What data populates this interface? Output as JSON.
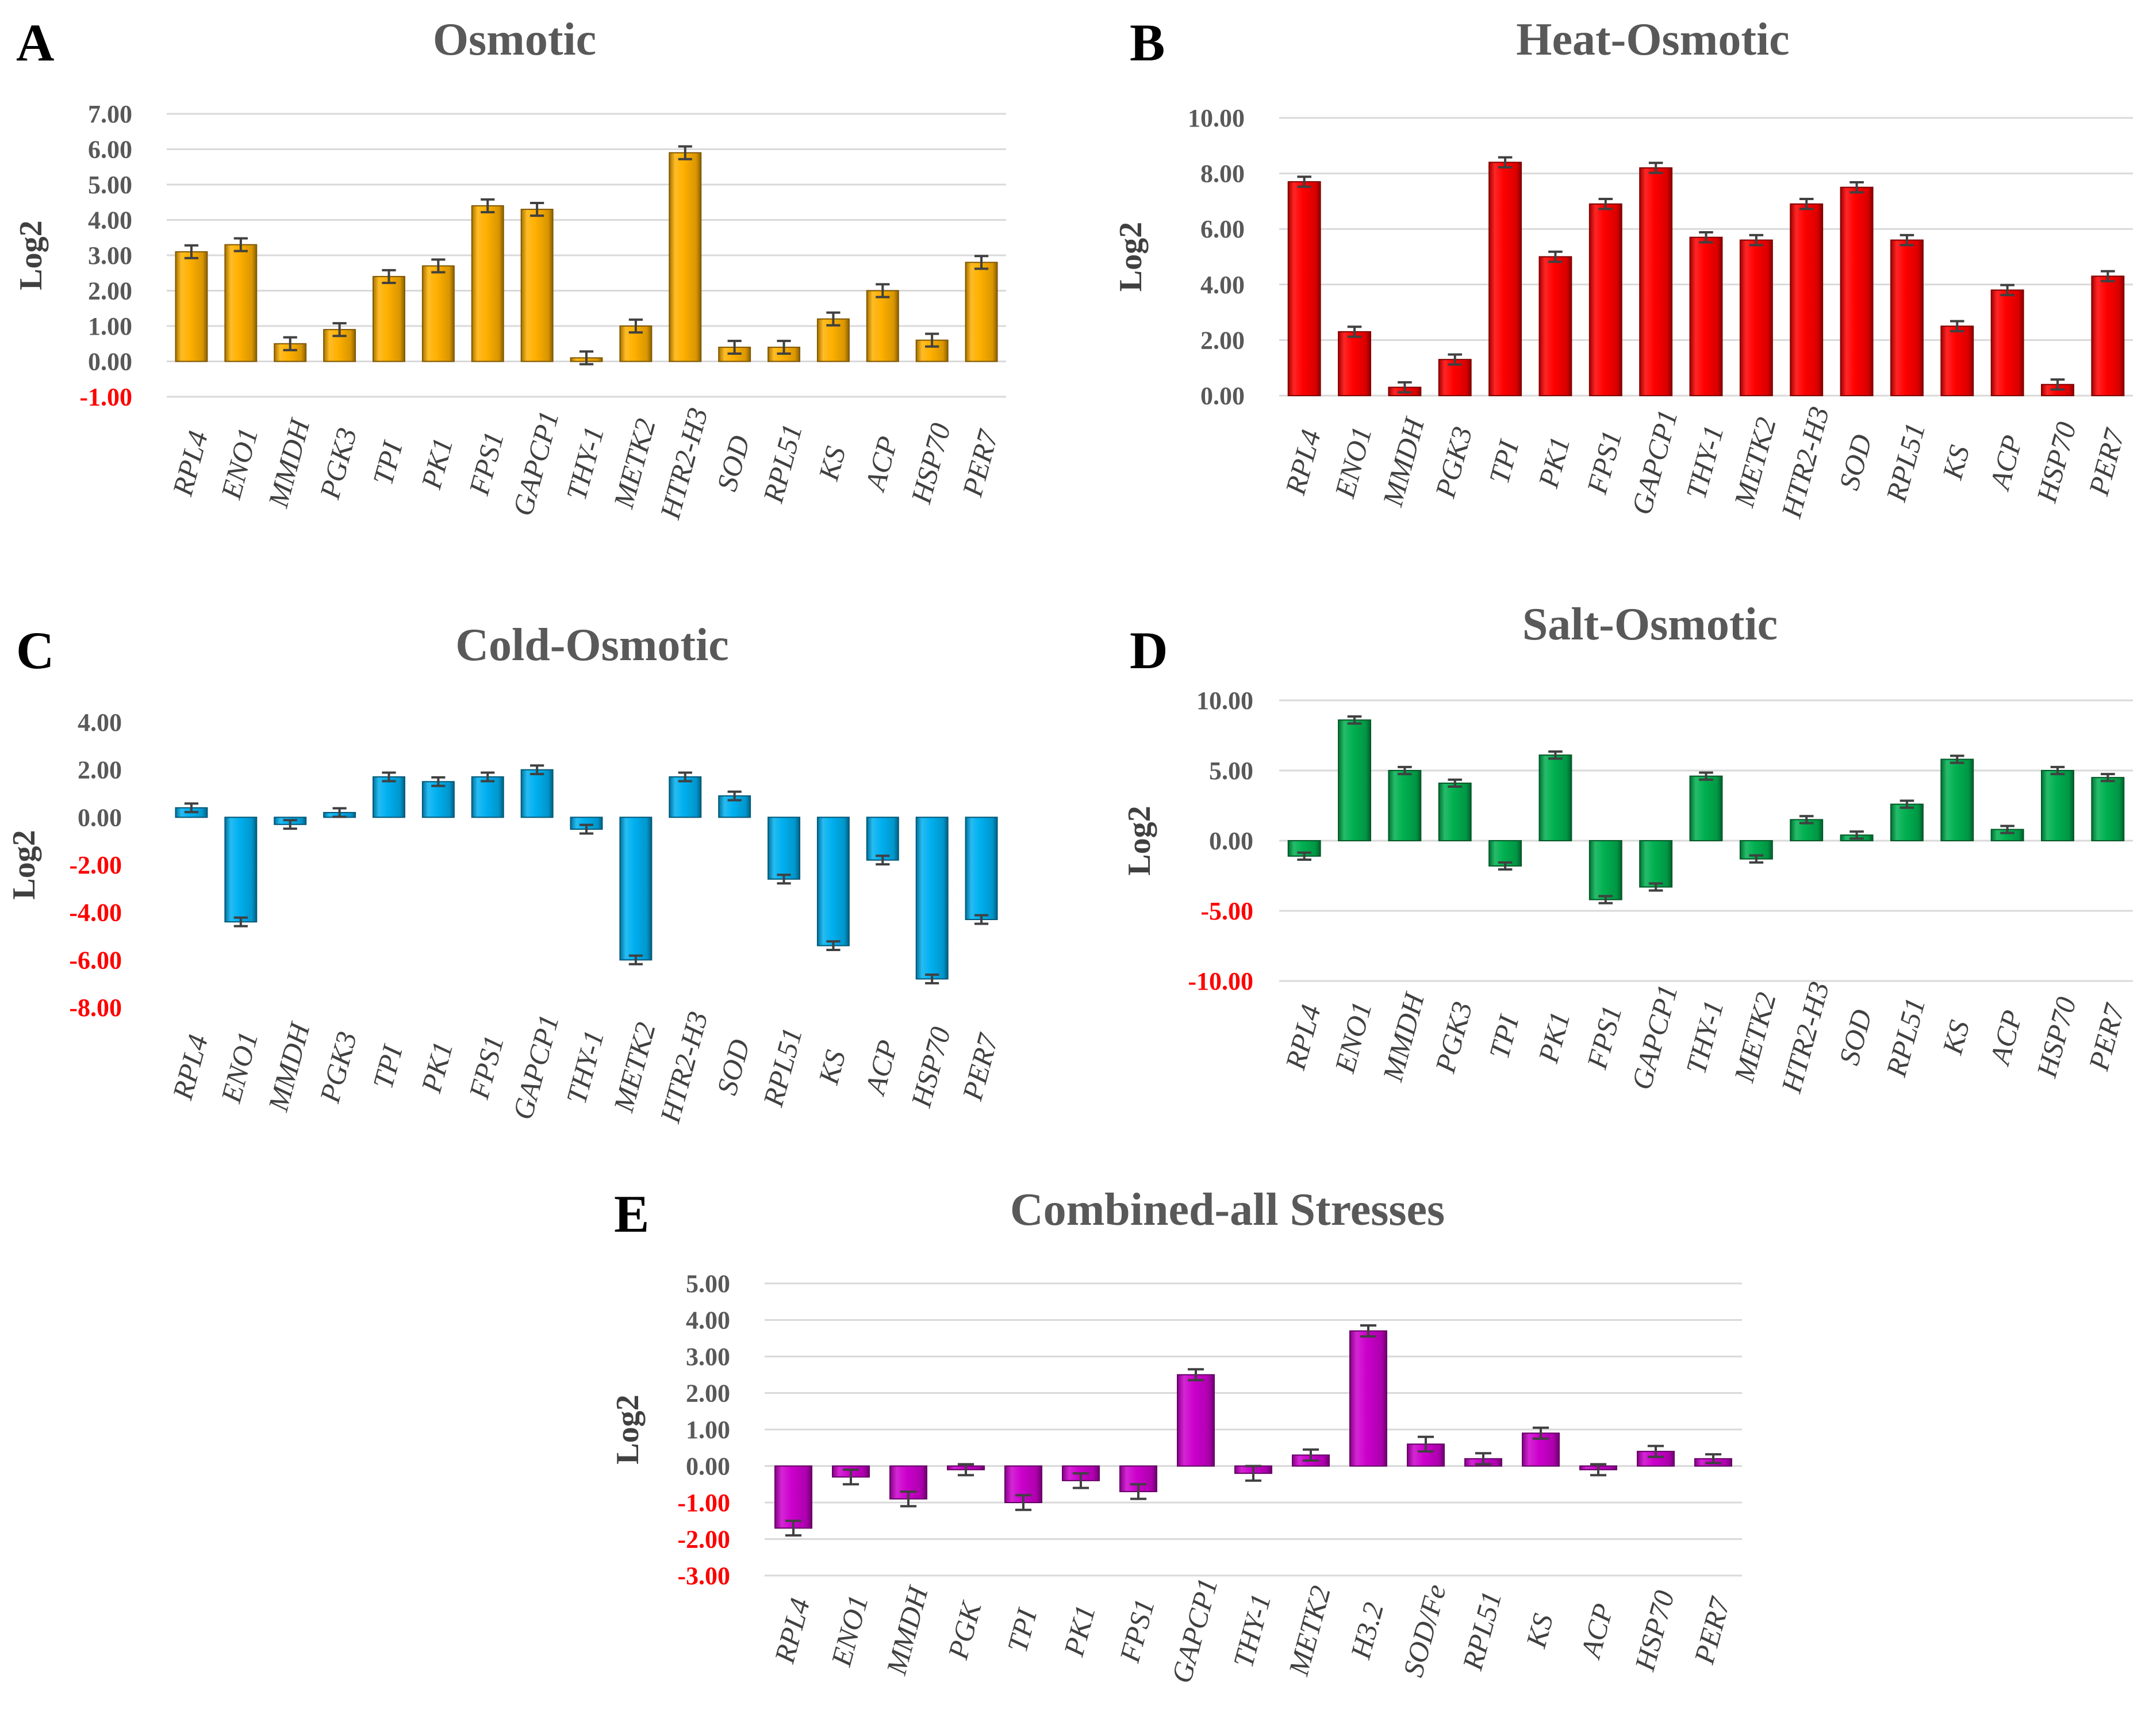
{
  "figure": {
    "neg_tick_color": "#ff0000",
    "pos_tick_color": "#595959",
    "axis_label_color": "#404040"
  },
  "chart_data": [
    {
      "panel": "A",
      "type": "bar",
      "title": "Osmotic",
      "xlabel": "",
      "ylabel": "Log2",
      "ylim": [
        -1,
        7
      ],
      "yticks": [
        -1,
        0,
        1,
        2,
        3,
        4,
        5,
        6,
        7
      ],
      "ytick_labels": [
        "-1.00",
        "0.00",
        "1.00",
        "2.00",
        "3.00",
        "4.00",
        "5.00",
        "6.00",
        "7.00"
      ],
      "grid": true,
      "color": "#ffb000",
      "categories": [
        "RPL4",
        "ENO1",
        "MMDH",
        "PGK3",
        "TPI",
        "PK1",
        "FPS1",
        "GAPCP1",
        "THY-1",
        "METK2",
        "HTR2-H3",
        "SOD",
        "RPL51",
        "KS",
        "ACP",
        "HSP70",
        "PER7"
      ],
      "values": [
        3.1,
        3.3,
        0.5,
        0.9,
        2.4,
        2.7,
        4.4,
        4.3,
        0.1,
        1.0,
        5.9,
        0.4,
        0.4,
        1.2,
        2.0,
        0.6,
        2.8
      ],
      "errors": [
        0.18,
        0.18,
        0.18,
        0.18,
        0.18,
        0.18,
        0.18,
        0.18,
        0.18,
        0.18,
        0.18,
        0.18,
        0.18,
        0.18,
        0.18,
        0.18,
        0.18
      ]
    },
    {
      "panel": "B",
      "type": "bar",
      "title": "Heat-Osmotic",
      "xlabel": "",
      "ylabel": "Log2",
      "ylim": [
        0,
        10
      ],
      "yticks": [
        0,
        2,
        4,
        6,
        8,
        10
      ],
      "ytick_labels": [
        "0.00",
        "2.00",
        "4.00",
        "6.00",
        "8.00",
        "10.00"
      ],
      "grid": true,
      "color": "#ff0000",
      "categories": [
        "RPL4",
        "ENO1",
        "MMDH",
        "PGK3",
        "TPI",
        "PK1",
        "FPS1",
        "GAPCP1",
        "THY-1",
        "METK2",
        "HTR2-H3",
        "SOD",
        "RPL51",
        "KS",
        "ACP",
        "HSP70",
        "PER7"
      ],
      "values": [
        7.7,
        2.3,
        0.3,
        1.3,
        8.4,
        5.0,
        6.9,
        8.2,
        5.7,
        5.6,
        6.9,
        7.5,
        5.6,
        2.5,
        3.8,
        0.4,
        4.3
      ],
      "errors": [
        0.18,
        0.18,
        0.18,
        0.18,
        0.18,
        0.18,
        0.18,
        0.18,
        0.18,
        0.18,
        0.18,
        0.18,
        0.18,
        0.18,
        0.18,
        0.18,
        0.18
      ]
    },
    {
      "panel": "C",
      "type": "bar",
      "title": "Cold-Osmotic",
      "xlabel": "",
      "ylabel": "Log2",
      "ylim": [
        -8,
        4
      ],
      "yticks": [
        -8,
        -6,
        -4,
        -2,
        0,
        2,
        4
      ],
      "ytick_labels": [
        "-8.00",
        "-6.00",
        "-4.00",
        "-2.00",
        "0.00",
        "2.00",
        "4.00"
      ],
      "grid": false,
      "color": "#00b0f0",
      "categories": [
        "RPL4",
        "ENO1",
        "MMDH",
        "PGK3",
        "TPI",
        "PK1",
        "FPS1",
        "GAPCP1",
        "THY-1",
        "METK2",
        "HTR2-H3",
        "SOD",
        "RPL51",
        "KS",
        "ACP",
        "HSP70",
        "PER7"
      ],
      "values": [
        0.4,
        -4.4,
        -0.3,
        0.2,
        1.7,
        1.5,
        1.7,
        2.0,
        -0.5,
        -6.0,
        1.7,
        0.9,
        -2.6,
        -5.4,
        -1.8,
        -6.8,
        -4.3
      ],
      "errors": [
        0.18,
        0.18,
        0.18,
        0.18,
        0.18,
        0.18,
        0.18,
        0.18,
        0.18,
        0.18,
        0.18,
        0.18,
        0.18,
        0.18,
        0.18,
        0.18,
        0.18
      ]
    },
    {
      "panel": "D",
      "type": "bar",
      "title": "Salt-Osmotic",
      "xlabel": "",
      "ylabel": "Log2",
      "ylim": [
        -10,
        10
      ],
      "yticks": [
        -10,
        -5,
        0,
        5,
        10
      ],
      "ytick_labels": [
        "-10.00",
        "-5.00",
        "0.00",
        "5.00",
        "10.00"
      ],
      "grid": true,
      "color": "#00b050",
      "categories": [
        "RPL4",
        "ENO1",
        "MMDH",
        "PGK3",
        "TPI",
        "PK1",
        "FPS1",
        "GAPCP1",
        "THY-1",
        "METK2",
        "HTR2-H3",
        "SOD",
        "RPL51",
        "KS",
        "ACP",
        "HSP70",
        "PER7"
      ],
      "values": [
        -1.1,
        8.6,
        5.0,
        4.1,
        -1.8,
        6.1,
        -4.2,
        -3.3,
        4.6,
        -1.3,
        1.5,
        0.4,
        2.6,
        5.8,
        0.8,
        5.0,
        4.5
      ],
      "errors": [
        0.25,
        0.25,
        0.25,
        0.25,
        0.25,
        0.25,
        0.25,
        0.25,
        0.25,
        0.25,
        0.25,
        0.25,
        0.25,
        0.25,
        0.25,
        0.25,
        0.25
      ]
    },
    {
      "panel": "E",
      "type": "bar",
      "title": "Combined-all Stresses",
      "xlabel": "",
      "ylabel": "Log2",
      "ylim": [
        -3,
        5
      ],
      "yticks": [
        -3,
        -2,
        -1,
        0,
        1,
        2,
        3,
        4,
        5
      ],
      "ytick_labels": [
        "-3.00",
        "-2.00",
        "-1.00",
        "0.00",
        "1.00",
        "2.00",
        "3.00",
        "4.00",
        "5.00"
      ],
      "grid": true,
      "color": "#cc00cc",
      "categories": [
        "RPL4",
        "ENO1",
        "MMDH",
        "PGK",
        "TPI",
        "PK1",
        "FPS1",
        "GAPCP1",
        "THY-1",
        "METK2",
        "H3.2",
        "SOD/Fe",
        "RPL51",
        "KS",
        "ACP",
        "HSP70",
        "PER7"
      ],
      "values": [
        -1.7,
        -0.3,
        -0.9,
        -0.1,
        -1.0,
        -0.4,
        -0.7,
        2.5,
        -0.2,
        0.3,
        3.7,
        0.6,
        0.2,
        0.9,
        -0.1,
        0.4,
        0.2
      ],
      "errors": [
        0.2,
        0.2,
        0.2,
        0.15,
        0.2,
        0.2,
        0.2,
        0.15,
        0.2,
        0.15,
        0.15,
        0.2,
        0.15,
        0.15,
        0.15,
        0.15,
        0.12
      ]
    }
  ]
}
